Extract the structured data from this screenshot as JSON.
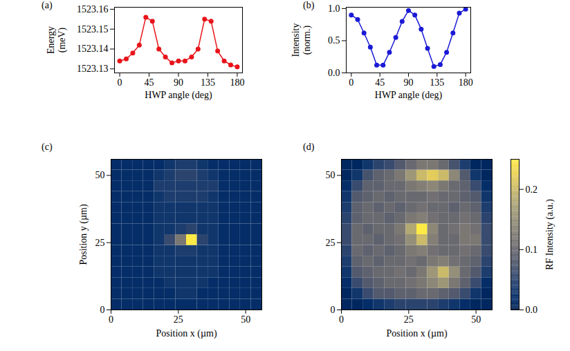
{
  "chart_data": [
    {
      "type": "line",
      "panel": "(a)",
      "x_label": "HWP angle (deg)",
      "y_label": "Energy\n(meV)",
      "x": [
        0,
        10,
        20,
        30,
        40,
        50,
        60,
        70,
        80,
        90,
        100,
        110,
        120,
        130,
        140,
        150,
        160,
        170,
        180
      ],
      "values": [
        1523.134,
        1523.135,
        1523.138,
        1523.142,
        1523.156,
        1523.154,
        1523.14,
        1523.136,
        1523.133,
        1523.134,
        1523.134,
        1523.136,
        1523.14,
        1523.155,
        1523.154,
        1523.139,
        1523.134,
        1523.132,
        1523.131
      ],
      "color": "#e8141a",
      "marker": "circle",
      "line_style": "solid",
      "xlim": [
        -8,
        188
      ],
      "xticks": [
        0,
        45,
        90,
        135,
        180
      ],
      "ylim": [
        1523.128,
        1523.161
      ],
      "yticks": [
        1523.13,
        1523.14,
        1523.15,
        1523.16
      ]
    },
    {
      "type": "line",
      "panel": "(b)",
      "x_label": "HWP angle (deg)",
      "y_label": "Intensity\n(norm.)",
      "x": [
        0,
        10,
        20,
        30,
        40,
        50,
        60,
        70,
        80,
        90,
        100,
        110,
        120,
        130,
        140,
        150,
        160,
        170,
        180
      ],
      "values": [
        0.9,
        0.83,
        0.62,
        0.4,
        0.12,
        0.12,
        0.32,
        0.55,
        0.8,
        0.97,
        0.9,
        0.68,
        0.38,
        0.1,
        0.13,
        0.32,
        0.62,
        0.93,
        0.99
      ],
      "color": "#1a1ad6",
      "marker": "circle",
      "line_style": "solid",
      "xlim": [
        -8,
        188
      ],
      "xticks": [
        0,
        45,
        90,
        135,
        180
      ],
      "ylim": [
        0,
        1.02
      ],
      "yticks": [
        {
          "value": 0,
          "label": "0.0"
        },
        {
          "value": 0.5,
          "label": "0.5"
        },
        {
          "value": 1,
          "label": "1.0"
        }
      ]
    },
    {
      "type": "heatmap",
      "panel": "(c)",
      "x_label": "Position x (µm)",
      "y_label": "Position y (µm)",
      "x": [
        2,
        6,
        10,
        14,
        18,
        22,
        26,
        30,
        34,
        38,
        42,
        46,
        50,
        54
      ],
      "y": [
        2,
        6,
        10,
        14,
        18,
        22,
        26,
        30,
        34,
        38,
        42,
        46,
        50,
        54
      ],
      "values": [
        [
          0.02,
          0.02,
          0.02,
          0.02,
          0.02,
          0.02,
          0.02,
          0.02,
          0.02,
          0.02,
          0.02,
          0.02,
          0.02,
          0.02
        ],
        [
          0.02,
          0.02,
          0.02,
          0.02,
          0.02,
          0.02,
          0.03,
          0.03,
          0.02,
          0.02,
          0.02,
          0.02,
          0.02,
          0.02
        ],
        [
          0.02,
          0.02,
          0.02,
          0.02,
          0.02,
          0.03,
          0.03,
          0.03,
          0.03,
          0.02,
          0.02,
          0.02,
          0.02,
          0.02
        ],
        [
          0.02,
          0.02,
          0.02,
          0.02,
          0.03,
          0.03,
          0.03,
          0.03,
          0.03,
          0.03,
          0.02,
          0.02,
          0.02,
          0.02
        ],
        [
          0.02,
          0.02,
          0.02,
          0.02,
          0.03,
          0.03,
          0.03,
          0.03,
          0.03,
          0.03,
          0.02,
          0.02,
          0.02,
          0.02
        ],
        [
          0.02,
          0.02,
          0.02,
          0.02,
          0.03,
          0.03,
          0.04,
          0.04,
          0.03,
          0.03,
          0.02,
          0.02,
          0.02,
          0.02
        ],
        [
          0.02,
          0.02,
          0.02,
          0.02,
          0.03,
          0.06,
          0.12,
          0.25,
          0.05,
          0.03,
          0.02,
          0.02,
          0.02,
          0.02
        ],
        [
          0.02,
          0.02,
          0.02,
          0.02,
          0.03,
          0.03,
          0.04,
          0.05,
          0.03,
          0.03,
          0.02,
          0.02,
          0.02,
          0.02
        ],
        [
          0.02,
          0.02,
          0.02,
          0.02,
          0.03,
          0.03,
          0.03,
          0.03,
          0.03,
          0.03,
          0.02,
          0.02,
          0.02,
          0.02
        ],
        [
          0.02,
          0.02,
          0.02,
          0.02,
          0.03,
          0.03,
          0.03,
          0.03,
          0.03,
          0.03,
          0.02,
          0.02,
          0.02,
          0.02
        ],
        [
          0.02,
          0.02,
          0.02,
          0.02,
          0.03,
          0.04,
          0.04,
          0.04,
          0.04,
          0.03,
          0.02,
          0.02,
          0.02,
          0.02
        ],
        [
          0.02,
          0.02,
          0.02,
          0.02,
          0.04,
          0.04,
          0.04,
          0.04,
          0.04,
          0.04,
          0.02,
          0.02,
          0.02,
          0.02
        ],
        [
          0.02,
          0.02,
          0.02,
          0.02,
          0.03,
          0.04,
          0.05,
          0.05,
          0.04,
          0.03,
          0.02,
          0.02,
          0.02,
          0.02
        ],
        [
          0.02,
          0.02,
          0.02,
          0.02,
          0.02,
          0.03,
          0.04,
          0.04,
          0.03,
          0.02,
          0.02,
          0.02,
          0.02,
          0.02
        ]
      ],
      "xlim": [
        0,
        56
      ],
      "xticks": [
        0,
        25,
        50
      ],
      "ylim": [
        0,
        56
      ],
      "yticks": [
        0,
        25,
        50
      ]
    },
    {
      "type": "heatmap",
      "panel": "(d)",
      "x_label": "Position x (µm)",
      "x": [
        2,
        6,
        10,
        14,
        18,
        22,
        26,
        30,
        34,
        38,
        42,
        46,
        50,
        54
      ],
      "y": [
        2,
        6,
        10,
        14,
        18,
        22,
        26,
        30,
        34,
        38,
        42,
        46,
        50,
        54
      ],
      "values": [
        [
          0.01,
          0.01,
          0.02,
          0.03,
          0.04,
          0.05,
          0.05,
          0.05,
          0.05,
          0.04,
          0.03,
          0.02,
          0.01,
          0.01
        ],
        [
          0.01,
          0.03,
          0.06,
          0.08,
          0.08,
          0.09,
          0.09,
          0.1,
          0.1,
          0.09,
          0.08,
          0.06,
          0.03,
          0.01
        ],
        [
          0.02,
          0.06,
          0.08,
          0.09,
          0.1,
          0.1,
          0.11,
          0.12,
          0.14,
          0.16,
          0.12,
          0.09,
          0.06,
          0.02
        ],
        [
          0.03,
          0.08,
          0.09,
          0.1,
          0.1,
          0.11,
          0.1,
          0.12,
          0.16,
          0.2,
          0.15,
          0.1,
          0.08,
          0.04
        ],
        [
          0.04,
          0.09,
          0.1,
          0.09,
          0.1,
          0.1,
          0.11,
          0.1,
          0.12,
          0.13,
          0.11,
          0.1,
          0.09,
          0.05
        ],
        [
          0.05,
          0.1,
          0.09,
          0.1,
          0.09,
          0.1,
          0.12,
          0.13,
          0.11,
          0.1,
          0.1,
          0.11,
          0.1,
          0.06
        ],
        [
          0.06,
          0.1,
          0.1,
          0.09,
          0.1,
          0.11,
          0.15,
          0.2,
          0.13,
          0.1,
          0.1,
          0.12,
          0.12,
          0.06
        ],
        [
          0.06,
          0.1,
          0.09,
          0.1,
          0.1,
          0.12,
          0.18,
          0.25,
          0.14,
          0.1,
          0.11,
          0.12,
          0.11,
          0.06
        ],
        [
          0.05,
          0.09,
          0.1,
          0.1,
          0.09,
          0.1,
          0.12,
          0.13,
          0.11,
          0.1,
          0.1,
          0.11,
          0.1,
          0.05
        ],
        [
          0.04,
          0.09,
          0.1,
          0.09,
          0.1,
          0.09,
          0.1,
          0.11,
          0.1,
          0.1,
          0.09,
          0.1,
          0.09,
          0.04
        ],
        [
          0.03,
          0.08,
          0.09,
          0.1,
          0.09,
          0.1,
          0.1,
          0.1,
          0.11,
          0.1,
          0.1,
          0.09,
          0.08,
          0.03
        ],
        [
          0.02,
          0.06,
          0.09,
          0.09,
          0.1,
          0.1,
          0.12,
          0.13,
          0.14,
          0.12,
          0.1,
          0.09,
          0.06,
          0.02
        ],
        [
          0.01,
          0.03,
          0.07,
          0.09,
          0.1,
          0.12,
          0.16,
          0.2,
          0.22,
          0.2,
          0.14,
          0.08,
          0.03,
          0.01
        ],
        [
          0.01,
          0.01,
          0.03,
          0.05,
          0.06,
          0.08,
          0.1,
          0.12,
          0.12,
          0.1,
          0.07,
          0.04,
          0.01,
          0.01
        ]
      ],
      "xlim": [
        0,
        56
      ],
      "xticks": [
        0,
        25,
        50
      ],
      "ylim": [
        0,
        56
      ],
      "yticks": [
        0,
        25,
        50
      ],
      "colorbar": {
        "label": "RF Intensity (a.u.)",
        "color": "cividis",
        "range": [
          0,
          0.25
        ],
        "ticks": [
          {
            "value": 0,
            "label": "0.0"
          },
          {
            "value": 0.1,
            "label": "0.1"
          },
          {
            "value": 0.2,
            "label": "0.2"
          }
        ]
      }
    }
  ]
}
